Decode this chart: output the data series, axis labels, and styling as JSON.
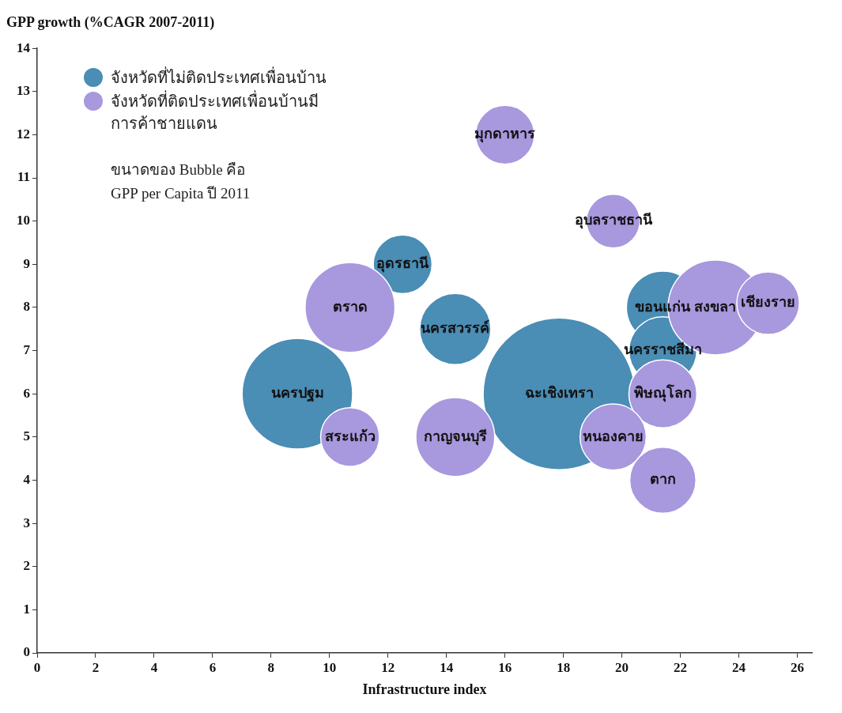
{
  "chart_data": {
    "type": "bubble",
    "ylabel": "GPP growth (%CAGR 2007-2011)",
    "xlabel": "Infrastructure index",
    "xlim": [
      0,
      26.5
    ],
    "xticks": [
      0,
      2,
      4,
      6,
      8,
      10,
      12,
      14,
      16,
      18,
      20,
      22,
      24,
      26
    ],
    "ylim": [
      0,
      14
    ],
    "yticks": [
      0,
      1,
      2,
      3,
      4,
      5,
      6,
      7,
      8,
      9,
      10,
      11,
      12,
      13,
      14
    ],
    "grid": false,
    "legend": "top left",
    "series": [
      {
        "name": "จังหวัดที่ไม่ติดประเทศเพื่อนบ้าน",
        "color": "#4a8db5",
        "x": [
          12.5,
          14.3,
          21.4,
          21.4,
          8.9,
          17.85
        ],
        "values": [
          9,
          7.5,
          8,
          7,
          6,
          6
        ],
        "sizes": [
          0.15,
          0.22,
          0.23,
          0.2,
          0.53,
          1
        ]
      },
      {
        "name": "จังหวัดที่ติดประเทศเพื่อนบ้านมีการค้าชายแดน",
        "color": "#a898de",
        "x": [
          16,
          19.7,
          10.7,
          23.2,
          25,
          21.4,
          10.7,
          14.3,
          19.7,
          21.4
        ],
        "values": [
          12,
          10,
          8,
          8,
          8.1,
          6,
          5,
          5,
          5,
          4
        ],
        "sizes": [
          0.15,
          0.125,
          0.35,
          0.39,
          0.17,
          0.2,
          0.15,
          0.27,
          0.19,
          0.19
        ]
      }
    ],
    "annotations": [
      "ขนาดของ Bubble คือ\nGPP per Capita ปี 2011",
      {
        "text": "มุกดาหาร",
        "x": 16,
        "y": 12
      },
      {
        "text": "อุบลราชธานี",
        "x": 19.7,
        "y": 10
      },
      {
        "text": "อุดรธานี",
        "x": 12.5,
        "y": 9
      },
      {
        "text": "ตราด",
        "x": 10.7,
        "y": 8
      },
      {
        "text": "นครสวรรค์",
        "x": 14.3,
        "y": 7.5
      },
      {
        "text": "สงขลา",
        "x": 23.2,
        "y": 8
      },
      {
        "text": "ขอนแก่น",
        "x": 21.4,
        "y": 8
      },
      {
        "text": "เชียงราย",
        "x": 25,
        "y": 8.1
      },
      {
        "text": "นครราชสีมา",
        "x": 21.4,
        "y": 7
      },
      {
        "text": "นครปฐม",
        "x": 8.9,
        "y": 6
      },
      {
        "text": "ฉะเชิงเทรา",
        "x": 17.85,
        "y": 6
      },
      {
        "text": "พิษณุโลก",
        "x": 21.4,
        "y": 6
      },
      {
        "text": "สระแก้ว",
        "x": 10.7,
        "y": 5
      },
      {
        "text": "กาญจนบุรี",
        "x": 14.3,
        "y": 5
      },
      {
        "text": "หนองคาย",
        "x": 19.7,
        "y": 5
      },
      {
        "text": "ตาก",
        "x": 21.4,
        "y": 4
      }
    ]
  }
}
